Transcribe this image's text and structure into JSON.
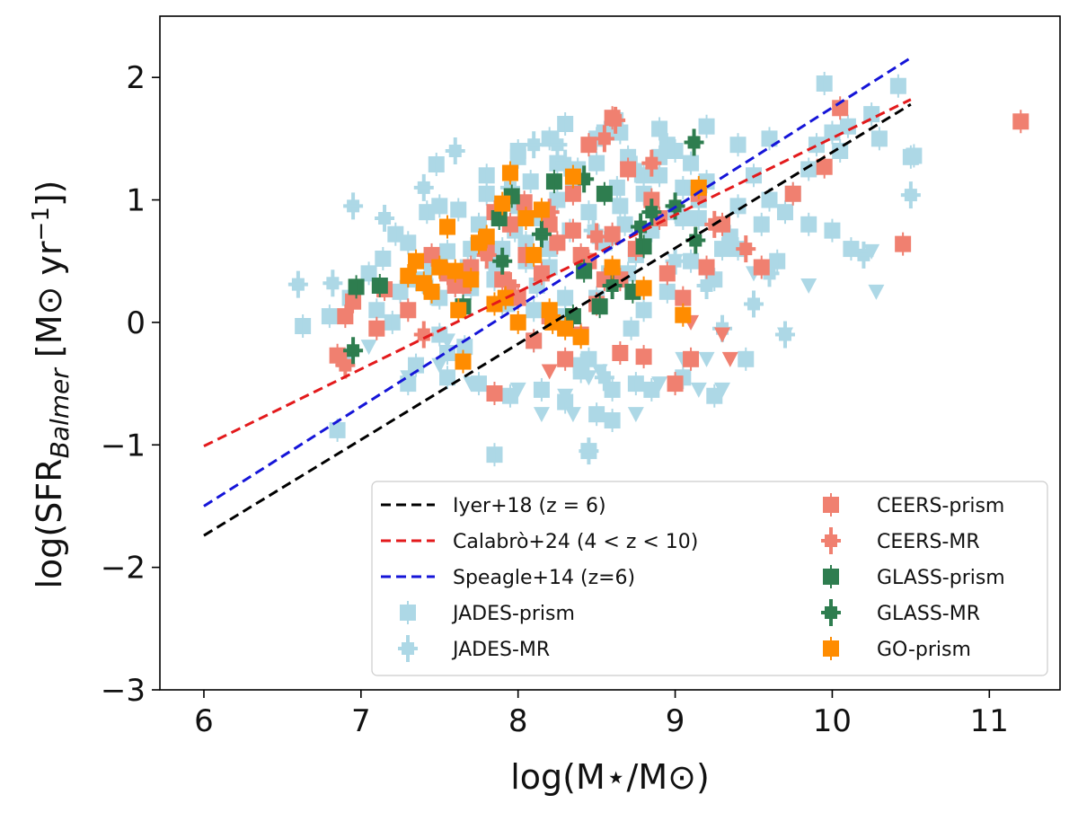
{
  "chart_data": {
    "type": "scatter",
    "xlabel": "log(M⋆/M⊙)",
    "ylabel": "log(SFR_Balmer [M⊙ yr⁻¹])",
    "ylabel_parts": {
      "pre": "log(SFR",
      "sub": "Balmer",
      "mid": " [M⊙ yr",
      "sup": "−1",
      "post": "])"
    },
    "xlim": [
      5.72,
      11.45
    ],
    "ylim": [
      -3,
      2.5
    ],
    "xticks": [
      6,
      7,
      8,
      9,
      10,
      11
    ],
    "xtick_labels": [
      "6",
      "7",
      "8",
      "9",
      "10",
      "11"
    ],
    "yticks": [
      -3,
      -2,
      -1,
      0,
      1,
      2
    ],
    "ytick_labels": [
      "−3",
      "−2",
      "−1",
      "0",
      "1",
      "2"
    ],
    "grid": false,
    "legend_position": "lower right",
    "lines": [
      {
        "name": "Iyer+18 (z = 6)",
        "color": "#000000",
        "x": [
          6.0,
          10.5
        ],
        "y": [
          -1.74,
          1.78
        ]
      },
      {
        "name": "Calabrò+24 (4 < z < 10)",
        "color": "#e31a1c",
        "x": [
          6.0,
          10.5
        ],
        "y": [
          -1.01,
          1.82
        ]
      },
      {
        "name": "Speagle+14 (z=6)",
        "color": "#1515d8",
        "x": [
          6.0,
          10.5
        ],
        "y": [
          -1.5,
          2.16
        ]
      }
    ],
    "series": [
      {
        "name": "JADES-prism",
        "color": "#add8e6",
        "marker": "square",
        "x": [
          6.63,
          6.85,
          6.93,
          7.05,
          7.14,
          7.22,
          7.3,
          7.35,
          7.42,
          7.48,
          7.55,
          7.62,
          7.68,
          7.7,
          7.75,
          7.8,
          7.85,
          7.9,
          7.93,
          7.98,
          8.0,
          8.05,
          8.08,
          8.12,
          8.15,
          8.2,
          8.25,
          8.3,
          8.33,
          8.38,
          8.42,
          8.45,
          8.5,
          8.55,
          8.58,
          8.63,
          8.68,
          8.7,
          8.75,
          8.8,
          8.85,
          8.9,
          8.95,
          9.0,
          9.05,
          9.1,
          9.15,
          9.2,
          9.3,
          9.4,
          9.5,
          9.6,
          9.75,
          9.85,
          10.0,
          10.1,
          10.3,
          10.5,
          6.9,
          7.1,
          7.2,
          7.5,
          7.6,
          7.66,
          7.9,
          8.1,
          8.2,
          8.3,
          8.4,
          8.5,
          8.6,
          8.7,
          8.8,
          8.95,
          9.1,
          9.25,
          9.4,
          9.55,
          9.7,
          9.9,
          10.05,
          10.25,
          10.42,
          7.3,
          7.5,
          7.7,
          7.8,
          8.0,
          8.2,
          8.35,
          8.5,
          8.65,
          8.8,
          9.0,
          9.2,
          9.4,
          9.6,
          7.35,
          7.55,
          7.75,
          7.95,
          8.15,
          8.3,
          8.45,
          8.6,
          8.75,
          8.85,
          9.05,
          9.25,
          9.45,
          7.7,
          7.85,
          8.05,
          8.25,
          8.55,
          8.65,
          8.9,
          9.15,
          7.85,
          8.45,
          8.5,
          8.6,
          7.25,
          7.45,
          6.8,
          9.35,
          9.65,
          9.85,
          10.0,
          10.52,
          10.12,
          9.95,
          7.5,
          8.0,
          8.3,
          8.62,
          8.9,
          7.55,
          7.85,
          8.1,
          8.4,
          8.72,
          9.05
        ],
        "y": [
          -0.03,
          -0.88,
          0.2,
          0.4,
          0.52,
          0.72,
          0.65,
          0.35,
          0.9,
          1.29,
          0.58,
          0.92,
          0.45,
          0.28,
          0.8,
          1.05,
          0.35,
          0.6,
          0.15,
          0.75,
          0.95,
          0.5,
          1.15,
          0.3,
          0.85,
          0.6,
          1.0,
          0.2,
          0.75,
          1.25,
          0.5,
          0.9,
          1.3,
          0.65,
          0.4,
          1.1,
          0.8,
          1.35,
          0.55,
          1.05,
          0.75,
          1.2,
          1.45,
          0.9,
          1.1,
          1.3,
          0.85,
          1.15,
          0.6,
          0.95,
          1.2,
          1.0,
          1.05,
          1.25,
          1.55,
          1.6,
          1.5,
          1.35,
          -0.3,
          0.1,
          0.0,
          0.2,
          0.3,
          -0.2,
          0.15,
          -0.15,
          0.45,
          0.05,
          -0.35,
          0.2,
          0.7,
          0.4,
          0.1,
          0.25,
          0.5,
          0.35,
          0.6,
          0.8,
          0.9,
          1.45,
          1.4,
          1.7,
          1.93,
          -0.5,
          -0.1,
          0.6,
          1.2,
          1.35,
          1.5,
          1.1,
          1.5,
          1.55,
          1.2,
          1.4,
          1.6,
          1.45,
          1.5,
          -0.35,
          -0.45,
          -0.5,
          -0.6,
          -0.55,
          -0.65,
          -0.3,
          -0.55,
          -0.5,
          -0.55,
          -0.45,
          -0.6,
          -0.3,
          0.35,
          0.55,
          0.65,
          1.3,
          1.55,
          0.95,
          1.35,
          1.0,
          -1.08,
          -1.05,
          -0.75,
          -0.8,
          0.25,
          0.45,
          0.05,
          0.7,
          0.5,
          0.8,
          0.75,
          1.36,
          0.6,
          1.95,
          0.95,
          1.4,
          1.62,
          1.65,
          1.58,
          -0.25,
          0.35,
          0.1,
          -0.4,
          -0.05,
          0.85
        ]
      },
      {
        "name": "JADES-MR",
        "color": "#add8e6",
        "marker": "plus",
        "x": [
          6.6,
          6.82,
          6.95,
          7.15,
          7.45,
          7.72,
          7.85,
          7.95,
          8.25,
          8.45,
          8.55,
          8.75,
          9.0,
          9.2,
          9.5,
          9.7,
          10.2,
          10.5,
          7.6,
          8.3,
          8.48,
          9.3,
          9.6,
          7.4,
          8.1
        ],
        "y": [
          0.31,
          0.32,
          0.95,
          0.85,
          0.25,
          0.6,
          0.45,
          1.1,
          1.45,
          -1.05,
          -0.45,
          1.25,
          0.5,
          0.3,
          0.15,
          -0.1,
          0.55,
          1.04,
          1.4,
          1.3,
          0.75,
          -0.05,
          0.4,
          1.1,
          1.45
        ]
      },
      {
        "name": "JADES-MR (upper limits)",
        "color": "#add8e6",
        "marker": "triangle-down",
        "x": [
          7.05,
          7.3,
          7.55,
          7.7,
          8.0,
          8.15,
          8.3,
          8.45,
          8.6,
          8.75,
          8.9,
          9.05,
          9.15,
          9.2,
          9.3,
          9.5,
          9.7,
          9.85,
          10.25,
          10.28,
          7.5,
          8.35,
          8.52,
          9.0
        ],
        "y": [
          -0.2,
          -0.45,
          -0.15,
          -0.5,
          -0.55,
          -0.75,
          -0.6,
          -0.45,
          -0.55,
          -0.75,
          -0.5,
          -0.3,
          -0.55,
          -0.3,
          -0.55,
          0.4,
          -0.1,
          0.3,
          0.58,
          0.25,
          -0.35,
          -0.75,
          -0.4,
          0.5
        ]
      },
      {
        "name": "CEERS-prism",
        "color": "#f08070",
        "marker": "square",
        "x": [
          6.85,
          6.9,
          6.95,
          7.15,
          7.45,
          7.55,
          7.65,
          7.7,
          7.8,
          7.85,
          7.9,
          7.95,
          8.0,
          8.05,
          8.1,
          8.15,
          8.2,
          8.25,
          8.3,
          8.35,
          8.4,
          8.45,
          8.5,
          8.55,
          8.6,
          8.65,
          8.7,
          8.75,
          8.8,
          8.85,
          8.9,
          8.95,
          9.0,
          9.05,
          9.1,
          9.15,
          9.2,
          9.3,
          9.55,
          9.75,
          9.95,
          10.05,
          10.45,
          11.2,
          8.04,
          8.6,
          8.45,
          7.85,
          8.35,
          7.6,
          7.3,
          8.2,
          8.4,
          8.65,
          7.1
        ],
        "y": [
          -0.27,
          0.05,
          0.17,
          0.27,
          0.55,
          0.4,
          0.3,
          0.45,
          0.6,
          -0.58,
          0.35,
          0.8,
          0.2,
          0.55,
          -0.15,
          0.4,
          0.05,
          0.65,
          -0.3,
          0.75,
          -0.1,
          0.5,
          0.15,
          0.35,
          0.72,
          -0.25,
          1.25,
          0.6,
          -0.28,
          1.0,
          0.85,
          0.4,
          -0.5,
          0.2,
          -0.3,
          1.05,
          0.45,
          0.8,
          0.45,
          1.05,
          1.27,
          1.75,
          0.64,
          1.64,
          0.98,
          1.67,
          1.45,
          0.9,
          1.05,
          0.3,
          0.1,
          0.8,
          0.55,
          0.35,
          -0.05
        ]
      },
      {
        "name": "CEERS-MR",
        "color": "#f08070",
        "marker": "plus",
        "x": [
          6.9,
          7.4,
          7.8,
          8.2,
          8.55,
          8.62,
          8.85,
          9.25,
          9.45,
          7.95,
          8.5
        ],
        "y": [
          -0.35,
          -0.1,
          0.55,
          0.9,
          1.5,
          1.65,
          1.3,
          0.8,
          0.6,
          0.3,
          0.7
        ]
      },
      {
        "name": "CEERS-MR (upper limits)",
        "color": "#f08070",
        "marker": "triangle-down",
        "x": [
          9.1,
          9.3,
          9.35,
          8.2
        ],
        "y": [
          0.0,
          -0.1,
          -0.3,
          -0.4
        ]
      },
      {
        "name": "GLASS-prism",
        "color": "#2e7d4f",
        "marker": "square",
        "x": [
          6.97,
          7.12,
          7.88,
          7.96,
          8.23,
          8.35,
          8.52,
          8.73,
          8.8,
          8.42,
          7.65,
          8.55
        ],
        "y": [
          0.29,
          0.3,
          0.85,
          1.03,
          1.15,
          0.05,
          0.13,
          0.25,
          0.62,
          0.42,
          0.13,
          1.05
        ]
      },
      {
        "name": "GLASS-MR",
        "color": "#2e7d4f",
        "marker": "plus",
        "x": [
          6.95,
          8.42,
          8.6,
          8.78,
          8.85,
          9.12,
          9.0,
          9.13,
          8.15,
          7.9
        ],
        "y": [
          -0.23,
          1.17,
          0.3,
          0.78,
          0.9,
          1.47,
          0.95,
          0.67,
          0.72,
          0.5
        ]
      },
      {
        "name": "GO-prism",
        "color": "#ff8c00",
        "marker": "square",
        "x": [
          7.3,
          7.35,
          7.45,
          7.5,
          7.55,
          7.6,
          7.65,
          7.7,
          7.75,
          7.8,
          7.85,
          7.9,
          7.95,
          8.0,
          8.05,
          8.1,
          8.15,
          8.2,
          8.3,
          8.35,
          8.4,
          8.6,
          8.8,
          9.05,
          9.15,
          7.4,
          7.62,
          7.92,
          8.22
        ],
        "y": [
          0.38,
          0.5,
          0.25,
          0.45,
          0.78,
          0.42,
          -0.32,
          0.35,
          0.65,
          0.7,
          0.15,
          0.97,
          1.22,
          0.0,
          0.85,
          0.55,
          0.92,
          0.1,
          -0.05,
          1.19,
          -0.12,
          0.45,
          0.28,
          0.06,
          1.1,
          0.32,
          0.1,
          0.2,
          0.0
        ]
      }
    ],
    "legend": {
      "left": [
        {
          "label": "Iyer+18 (z = 6)",
          "kind": "line",
          "color": "#000000"
        },
        {
          "label": "Calabrò+24 (4 < z < 10)",
          "kind": "line",
          "color": "#e31a1c"
        },
        {
          "label": "Speagle+14 (z=6)",
          "kind": "line",
          "color": "#1515d8"
        },
        {
          "label": "JADES-prism",
          "kind": "square",
          "color": "#add8e6"
        },
        {
          "label": "JADES-MR",
          "kind": "plus",
          "color": "#add8e6"
        }
      ],
      "right": [
        {
          "label": "CEERS-prism",
          "kind": "square",
          "color": "#f08070"
        },
        {
          "label": "CEERS-MR",
          "kind": "plus",
          "color": "#f08070"
        },
        {
          "label": "GLASS-prism",
          "kind": "square",
          "color": "#2e7d4f"
        },
        {
          "label": "GLASS-MR",
          "kind": "plus",
          "color": "#2e7d4f"
        },
        {
          "label": "GO-prism",
          "kind": "square",
          "color": "#ff8c00"
        }
      ]
    }
  }
}
